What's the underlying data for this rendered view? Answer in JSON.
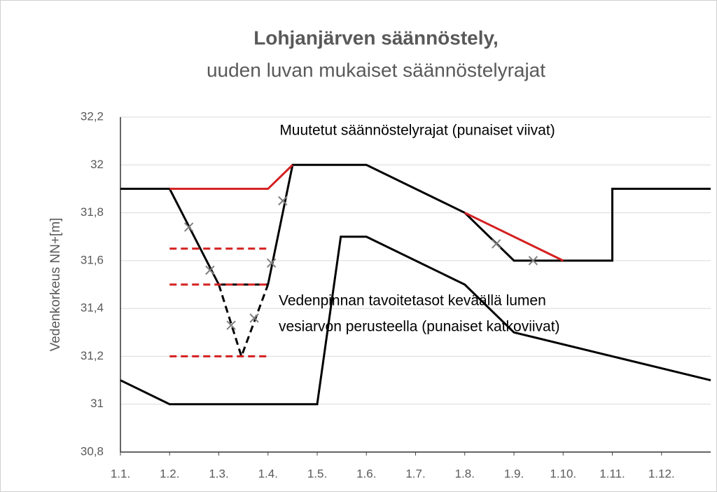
{
  "chart_data": {
    "type": "line",
    "title": "Lohjanjärven säännöstely,",
    "subtitle": "uuden luvan mukaiset  säännöstelyrajat",
    "y_label": "Vedenkorkeus NN+[m]",
    "annotations": [
      "Muutetut säännöstelyrajat (punaiset viivat)",
      "Vedenpinnan tavoitetasot keväällä lumen",
      "vesiarvon perusteella (punaiset katkoviivat)"
    ],
    "xlim": [
      0,
      12
    ],
    "xticks": [
      {
        "value": 0,
        "label": "1.1."
      },
      {
        "value": 1,
        "label": "1.2."
      },
      {
        "value": 2,
        "label": "1.3."
      },
      {
        "value": 3,
        "label": "1.4."
      },
      {
        "value": 4,
        "label": "1.5."
      },
      {
        "value": 5,
        "label": "1.6."
      },
      {
        "value": 6,
        "label": "1.7."
      },
      {
        "value": 7,
        "label": "1.8."
      },
      {
        "value": 8,
        "label": "1.9."
      },
      {
        "value": 9,
        "label": "1.10."
      },
      {
        "value": 10,
        "label": "1.11."
      },
      {
        "value": 11,
        "label": "1.12."
      }
    ],
    "ylim": [
      30.8,
      32.2
    ],
    "yticks": [
      {
        "value": 30.8,
        "label": "30,8"
      },
      31,
      {
        "value": 31.2,
        "label": "31,2"
      },
      {
        "value": 31.4,
        "label": "31,4"
      },
      {
        "value": 31.6,
        "label": "31,6"
      },
      {
        "value": 31.8,
        "label": "31,8"
      },
      32,
      {
        "value": 32.2,
        "label": "32,2"
      }
    ],
    "grid": true,
    "series": [
      {
        "color": "#000000",
        "dashed": false,
        "x": [
          0,
          1,
          2,
          null,
          3,
          3.5,
          5,
          7,
          8,
          10,
          10,
          12
        ],
        "values": [
          31.9,
          31.9,
          31.5,
          null,
          31.5,
          32,
          32,
          31.8,
          31.6,
          31.6,
          31.9,
          31.9
        ]
      },
      {
        "color": "#000000",
        "dashed": false,
        "x": [
          2,
          3
        ],
        "values": [
          31.5,
          31.5
        ]
      },
      {
        "color": "#000000",
        "dashed": true,
        "x": [
          2,
          2.46,
          3
        ],
        "values": [
          31.5,
          31.2,
          31.5
        ]
      },
      {
        "color": "#000000",
        "dashed": false,
        "x": [
          0,
          1,
          4,
          4.48,
          5,
          7,
          8,
          10,
          12
        ],
        "values": [
          31.1,
          31,
          31,
          31.7,
          31.7,
          31.5,
          31.3,
          31.2,
          31.1
        ]
      },
      {
        "color": "#d42020",
        "dashed": false,
        "x": [
          1,
          3,
          3.5
        ],
        "values": [
          31.9,
          31.9,
          32
        ]
      },
      {
        "color": "#d42020",
        "dashed": false,
        "x": [
          7,
          9
        ],
        "values": [
          31.8,
          31.6
        ]
      },
      {
        "color": "#d42020",
        "dashed": true,
        "x": [
          1,
          3
        ],
        "values": [
          31.65,
          31.65
        ]
      },
      {
        "color": "#d42020",
        "dashed": true,
        "x": [
          1,
          3
        ],
        "values": [
          31.5,
          31.5
        ]
      },
      {
        "color": "#d42020",
        "dashed": true,
        "x": [
          1,
          3
        ],
        "values": [
          31.2,
          31.2
        ]
      },
      {
        "color": "#808080",
        "marker": "x",
        "x": [
          1.39,
          1.82,
          2.25,
          2.72,
          3.07,
          3.3,
          7.64,
          8.39
        ],
        "values": [
          31.74,
          31.56,
          31.33,
          31.36,
          31.59,
          31.85,
          31.67,
          31.6
        ]
      }
    ]
  }
}
